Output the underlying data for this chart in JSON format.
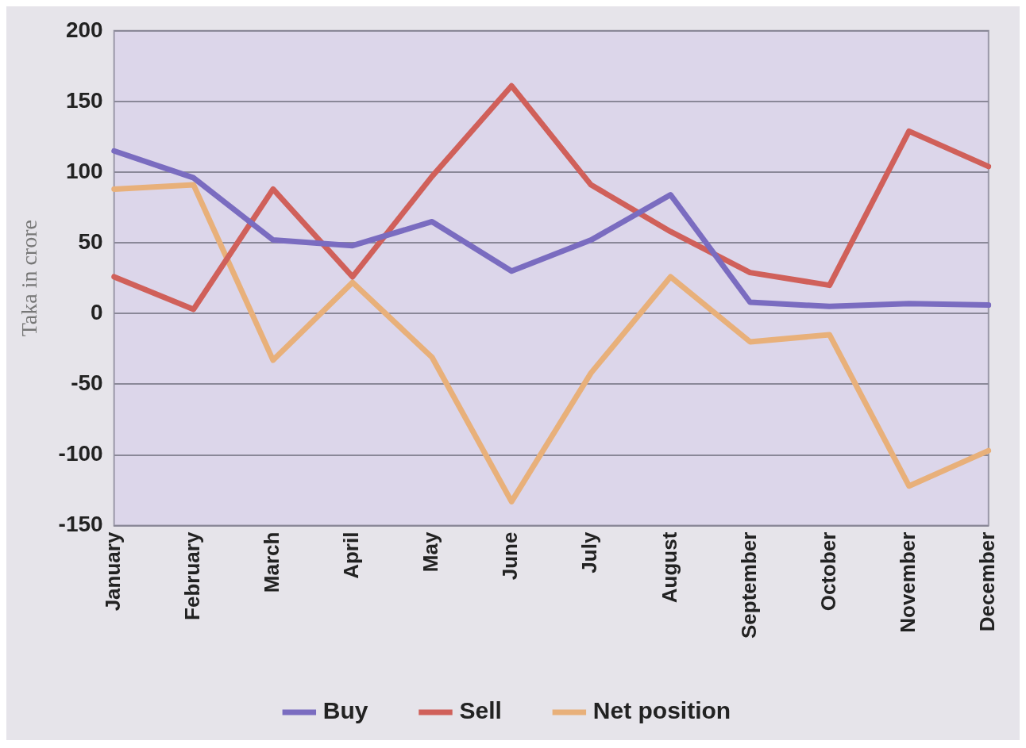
{
  "chart_data": {
    "type": "line",
    "ylabel": "Taka in crore",
    "categories": [
      "January",
      "February",
      "March",
      "April",
      "May",
      "June",
      "July",
      "August",
      "September",
      "October",
      "November",
      "December"
    ],
    "series": [
      {
        "name": "Buy",
        "color": "#7a6cc0",
        "values": [
          115,
          96,
          52,
          48,
          65,
          30,
          52,
          84,
          8,
          5,
          7,
          6
        ]
      },
      {
        "name": "Sell",
        "color": "#d0605a",
        "values": [
          26,
          3,
          88,
          26,
          97,
          161,
          91,
          58,
          29,
          20,
          129,
          104
        ]
      },
      {
        "name": "Net position",
        "color": "#e8b07a",
        "values": [
          88,
          91,
          -33,
          22,
          -31,
          -133,
          -42,
          26,
          -20,
          -15,
          -122,
          -97
        ]
      }
    ],
    "ylim": [
      -150,
      200
    ],
    "yticks": [
      -150,
      -100,
      -50,
      0,
      50,
      100,
      150,
      200
    ],
    "grid": "y",
    "legend": "bottom",
    "marker": "none",
    "line_style": "solid"
  }
}
